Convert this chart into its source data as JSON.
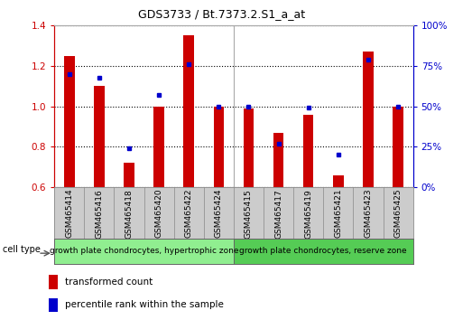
{
  "title": "GDS3733 / Bt.7373.2.S1_a_at",
  "samples": [
    "GSM465414",
    "GSM465416",
    "GSM465418",
    "GSM465420",
    "GSM465422",
    "GSM465424",
    "GSM465415",
    "GSM465417",
    "GSM465419",
    "GSM465421",
    "GSM465423",
    "GSM465425"
  ],
  "transformed_counts": [
    1.25,
    1.1,
    0.72,
    1.0,
    1.35,
    1.0,
    0.99,
    0.87,
    0.96,
    0.66,
    1.27,
    1.0
  ],
  "percentile_ranks": [
    70,
    68,
    24,
    57,
    76,
    50,
    50,
    27,
    49,
    20,
    79,
    50
  ],
  "ylim_left": [
    0.6,
    1.4
  ],
  "ylim_right": [
    0,
    100
  ],
  "yticks_left": [
    0.6,
    0.8,
    1.0,
    1.2,
    1.4
  ],
  "yticks_right": [
    0,
    25,
    50,
    75,
    100
  ],
  "bar_color": "#cc0000",
  "dot_color": "#0000cc",
  "bar_width": 0.35,
  "group1_label": "growth plate chondrocytes, hypertrophic zone",
  "group2_label": "growth plate chondrocytes, reserve zone",
  "group1_count": 6,
  "group2_count": 6,
  "cell_type_label": "cell type",
  "legend1": "transformed count",
  "legend2": "percentile rank within the sample",
  "group_bg_color_1": "#90EE90",
  "group_bg_color_2": "#55CC55",
  "left_axis_color": "#cc0000",
  "right_axis_color": "#0000cc",
  "tick_label_area_color": "#cccccc",
  "fig_bg_color": "#ffffff",
  "title_fontsize": 9,
  "tick_fontsize": 7.5,
  "label_fontsize": 6.5,
  "legend_fontsize": 7.5
}
